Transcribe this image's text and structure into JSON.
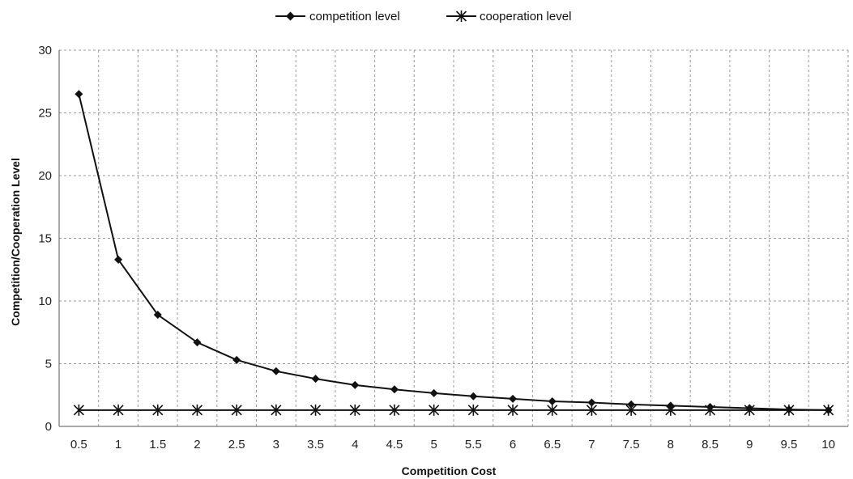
{
  "chart_data": {
    "type": "line",
    "title": "",
    "xlabel": "Competition Cost",
    "ylabel": "Competition/Cooperation Level",
    "categories": [
      "0.5",
      "1",
      "1.5",
      "2",
      "2.5",
      "3",
      "3.5",
      "4",
      "4.5",
      "5",
      "5.5",
      "6",
      "6.5",
      "7",
      "7.5",
      "8",
      "8.5",
      "9",
      "9.5",
      "10"
    ],
    "ylim": [
      0,
      30
    ],
    "yticks": [
      0,
      5,
      10,
      15,
      20,
      25,
      30
    ],
    "grid": "dashed, both axes",
    "legend_position": "top-center",
    "series": [
      {
        "name": "competition level",
        "marker": "diamond",
        "color": "#111111",
        "values": [
          26.5,
          13.3,
          8.9,
          6.7,
          5.3,
          4.4,
          3.8,
          3.3,
          2.95,
          2.65,
          2.4,
          2.2,
          2.0,
          1.9,
          1.75,
          1.65,
          1.55,
          1.45,
          1.35,
          1.3
        ]
      },
      {
        "name": "cooperation level",
        "marker": "asterisk",
        "color": "#111111",
        "values": [
          1.3,
          1.3,
          1.3,
          1.3,
          1.3,
          1.3,
          1.3,
          1.3,
          1.3,
          1.3,
          1.3,
          1.3,
          1.3,
          1.3,
          1.3,
          1.3,
          1.3,
          1.3,
          1.3,
          1.3
        ]
      }
    ]
  }
}
